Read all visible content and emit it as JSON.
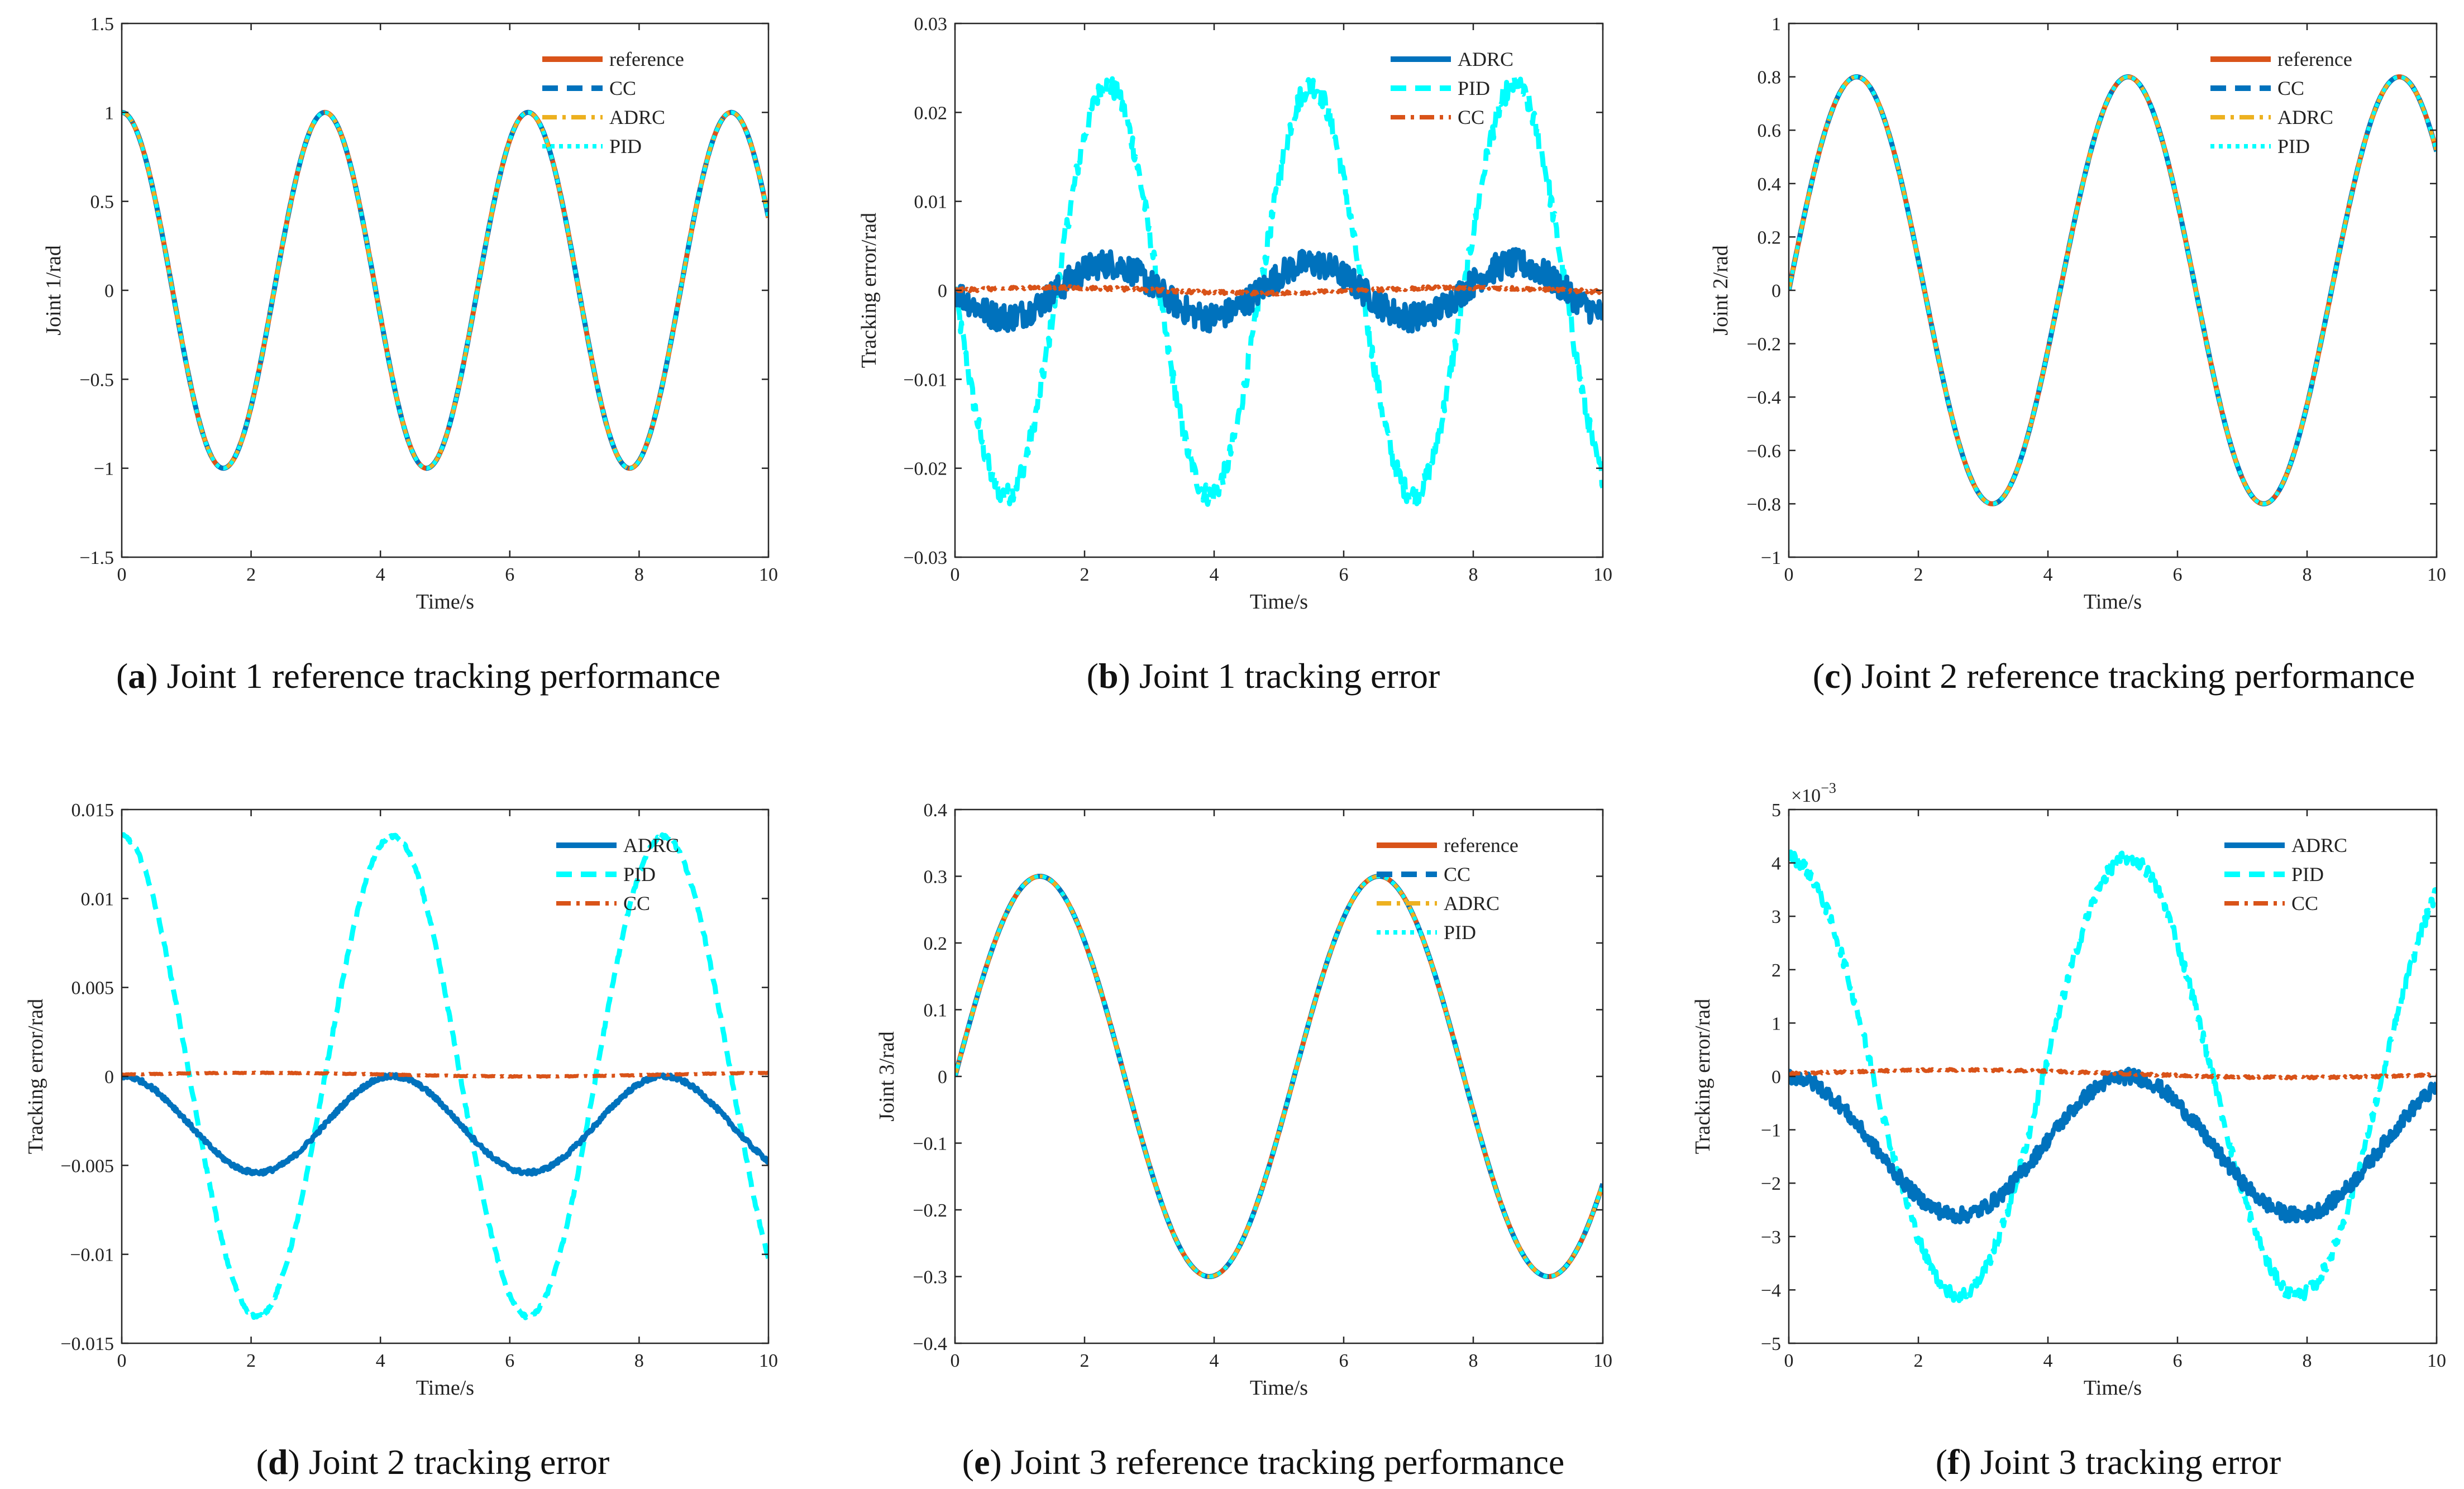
{
  "figure": {
    "panels": [
      {
        "id": "a",
        "letter": "a",
        "caption": " Joint 1 reference tracking performance"
      },
      {
        "id": "b",
        "letter": "b",
        "caption": " Joint 1 tracking error"
      },
      {
        "id": "c",
        "letter": "c",
        "caption": " Joint 2 reference tracking performance"
      },
      {
        "id": "d",
        "letter": "d",
        "caption": "  Joint 2 tracking error"
      },
      {
        "id": "e",
        "letter": "e",
        "caption": " Joint 3 reference tracking performance"
      },
      {
        "id": "f",
        "letter": "f",
        "caption": " Joint 3 tracking error"
      }
    ]
  },
  "colors": {
    "reference": "#D95319",
    "CC": "#0072BD",
    "ADRC": "#EDB120",
    "PID": "#00FFFF",
    "ADRC_err": "#0072BD",
    "PID_err": "#00FFFF",
    "CC_err": "#D95319",
    "axis": "#262626"
  },
  "chart_data": [
    {
      "id": "a",
      "type": "line",
      "title": "",
      "xlabel": "Time/s",
      "ylabel": "Joint 1/rad",
      "xlim": [
        0,
        10
      ],
      "ylim": [
        -1.5,
        1.5
      ],
      "xticks": [
        0,
        2,
        4,
        6,
        8,
        10
      ],
      "yticks": [
        -1.5,
        -1,
        -0.5,
        0,
        0.5,
        1,
        1.5
      ],
      "ytick_labels": [
        "−1.5",
        "−1",
        "−0.5",
        "0",
        "0.5",
        "1",
        "1.5"
      ],
      "exponent_label": "",
      "legend_position": "top-right",
      "model": {
        "kind": "cos",
        "amplitude": 1.0,
        "omega": 2.0
      },
      "series": [
        {
          "name": "reference",
          "style": "solid",
          "color_key": "reference"
        },
        {
          "name": "CC",
          "style": "dash",
          "color_key": "CC"
        },
        {
          "name": "ADRC",
          "style": "dashdot",
          "color_key": "ADRC"
        },
        {
          "name": "PID",
          "style": "dot",
          "color_key": "PID"
        }
      ]
    },
    {
      "id": "b",
      "type": "line",
      "title": "",
      "xlabel": "Time/s",
      "ylabel": "Tracking error/rad",
      "xlim": [
        0,
        10
      ],
      "ylim": [
        -0.03,
        0.03
      ],
      "xticks": [
        0,
        2,
        4,
        6,
        8,
        10
      ],
      "yticks": [
        -0.03,
        -0.02,
        -0.01,
        0,
        0.01,
        0.02,
        0.03
      ],
      "ytick_labels": [
        "−0.03",
        "−0.02",
        "−0.01",
        "0",
        "0.01",
        "0.02",
        "0.03"
      ],
      "exponent_label": "",
      "legend_position": "top-right",
      "model": {
        "kind": "error",
        "omega": 2.0,
        "pid_amp": 0.023,
        "pid_phase": 3.14,
        "pid_offset": 0,
        "pid_noise": 0.0012,
        "adrc_amp": 0.003,
        "adrc_phase": 3.14,
        "adrc_offset": 0,
        "adrc_noise": 0.0016,
        "cc_amp": 0.0003,
        "cc_offset": 0,
        "cc_noise": 0.0002
      },
      "series": [
        {
          "name": "ADRC",
          "style": "solid",
          "color_key": "ADRC_err"
        },
        {
          "name": "PID",
          "style": "dash",
          "color_key": "PID_err"
        },
        {
          "name": "CC",
          "style": "dashdot",
          "color_key": "CC_err"
        }
      ]
    },
    {
      "id": "c",
      "type": "line",
      "title": "",
      "xlabel": "Time/s",
      "ylabel": "Joint 2/rad",
      "xlim": [
        0,
        10
      ],
      "ylim": [
        -1,
        1
      ],
      "xticks": [
        0,
        2,
        4,
        6,
        8,
        10
      ],
      "yticks": [
        -1,
        -0.8,
        -0.6,
        -0.4,
        -0.2,
        0,
        0.2,
        0.4,
        0.6,
        0.8,
        1
      ],
      "ytick_labels": [
        "−1",
        "−0.8",
        "−0.6",
        "−0.4",
        "−0.2",
        "0",
        "0.2",
        "0.4",
        "0.6",
        "0.8",
        "1"
      ],
      "exponent_label": "",
      "legend_position": "top-right",
      "model": {
        "kind": "sin",
        "amplitude": 0.8,
        "omega": 1.5
      },
      "series": [
        {
          "name": "reference",
          "style": "solid",
          "color_key": "reference"
        },
        {
          "name": "CC",
          "style": "dash",
          "color_key": "CC"
        },
        {
          "name": "ADRC",
          "style": "dashdot",
          "color_key": "ADRC"
        },
        {
          "name": "PID",
          "style": "dot",
          "color_key": "PID"
        }
      ]
    },
    {
      "id": "d",
      "type": "line",
      "title": "",
      "xlabel": "Time/s",
      "ylabel": "Tracking error/rad",
      "xlim": [
        0,
        10
      ],
      "ylim": [
        -0.015,
        0.015
      ],
      "xticks": [
        0,
        2,
        4,
        6,
        8,
        10
      ],
      "yticks": [
        -0.015,
        -0.01,
        -0.005,
        0,
        0.005,
        0.01,
        0.015
      ],
      "ytick_labels": [
        "−0.015",
        "−0.01",
        "−0.005",
        "0",
        "0.005",
        "0.01",
        "0.015"
      ],
      "exponent_label": "",
      "legend_position": "top-right",
      "model": {
        "kind": "error",
        "omega": 1.5,
        "pid_amp": 0.0135,
        "pid_phase": 1.5708,
        "pid_offset": 0,
        "pid_noise": 0.0001,
        "adrc_amp": 0.0027,
        "adrc_phase": 1.5708,
        "adrc_offset": -0.0027,
        "adrc_noise": 0.00012,
        "cc_amp": 0.0001,
        "cc_offset": 0.0001,
        "cc_noise": 2e-05
      },
      "series": [
        {
          "name": "ADRC",
          "style": "solid",
          "color_key": "ADRC_err"
        },
        {
          "name": "PID",
          "style": "dash",
          "color_key": "PID_err"
        },
        {
          "name": "CC",
          "style": "dashdot",
          "color_key": "CC_err"
        }
      ]
    },
    {
      "id": "e",
      "type": "line",
      "title": "",
      "xlabel": "Time/s",
      "ylabel": "Joint 3/rad",
      "xlim": [
        0,
        10
      ],
      "ylim": [
        -0.4,
        0.4
      ],
      "xticks": [
        0,
        2,
        4,
        6,
        8,
        10
      ],
      "yticks": [
        -0.4,
        -0.3,
        -0.2,
        -0.1,
        0,
        0.1,
        0.2,
        0.3,
        0.4
      ],
      "ytick_labels": [
        "−0.4",
        "−0.3",
        "−0.2",
        "−0.1",
        "0",
        "0.1",
        "0.2",
        "0.3",
        "0.4"
      ],
      "exponent_label": "",
      "legend_position": "top-right",
      "model": {
        "kind": "sin",
        "amplitude": 0.3,
        "omega": 1.2
      },
      "series": [
        {
          "name": "reference",
          "style": "solid",
          "color_key": "reference"
        },
        {
          "name": "CC",
          "style": "dash",
          "color_key": "CC"
        },
        {
          "name": "ADRC",
          "style": "dashdot",
          "color_key": "ADRC"
        },
        {
          "name": "PID",
          "style": "dot",
          "color_key": "PID"
        }
      ]
    },
    {
      "id": "f",
      "type": "line",
      "title": "",
      "xlabel": "Time/s",
      "ylabel": "Tracking error/rad",
      "xlim": [
        0,
        10
      ],
      "ylim": [
        -5,
        5
      ],
      "xticks": [
        0,
        2,
        4,
        6,
        8,
        10
      ],
      "yticks": [
        -5,
        -4,
        -3,
        -2,
        -1,
        0,
        1,
        2,
        3,
        4,
        5
      ],
      "ytick_labels": [
        "−5",
        "−4",
        "−3",
        "−2",
        "−1",
        "0",
        "1",
        "2",
        "3",
        "4",
        "5"
      ],
      "exponent_label": "×10",
      "exponent_power": "−3",
      "legend_position": "top-right",
      "model": {
        "kind": "error",
        "omega": 1.2,
        "pid_amp": 4.1,
        "pid_phase": 1.5708,
        "pid_offset": 0,
        "pid_noise": 0.12,
        "adrc_amp": 1.3,
        "adrc_phase": 1.5708,
        "adrc_offset": -1.3,
        "adrc_noise": 0.14,
        "cc_amp": 0.07,
        "cc_offset": 0.05,
        "cc_noise": 0.02
      },
      "series": [
        {
          "name": "ADRC",
          "style": "solid",
          "color_key": "ADRC_err"
        },
        {
          "name": "PID",
          "style": "dash",
          "color_key": "PID_err"
        },
        {
          "name": "CC",
          "style": "dashdot",
          "color_key": "CC_err"
        }
      ]
    }
  ]
}
